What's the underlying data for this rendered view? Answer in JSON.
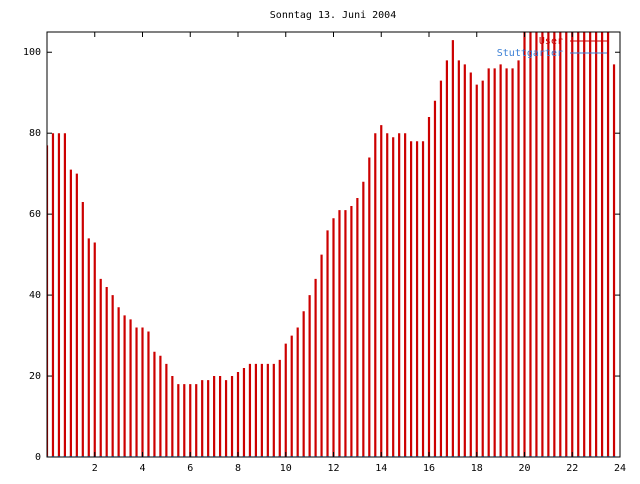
{
  "chart_data": {
    "type": "impulse",
    "title": "Sonntag 13. Juni 2004",
    "x": [
      0,
      0.25,
      0.5,
      0.75,
      1,
      1.25,
      1.5,
      1.75,
      2,
      2.25,
      2.5,
      2.75,
      3,
      3.25,
      3.5,
      3.75,
      4,
      4.25,
      4.5,
      4.75,
      5,
      5.25,
      5.5,
      5.75,
      6,
      6.25,
      6.5,
      6.75,
      7,
      7.25,
      7.5,
      7.75,
      8,
      8.25,
      8.5,
      8.75,
      9,
      9.25,
      9.5,
      9.75,
      10,
      10.25,
      10.5,
      10.75,
      11,
      11.25,
      11.5,
      11.75,
      12,
      12.25,
      12.5,
      12.75,
      13,
      13.25,
      13.5,
      13.75,
      14,
      14.25,
      14.5,
      14.75,
      15,
      15.25,
      15.5,
      15.75,
      16,
      16.25,
      16.5,
      16.75,
      17,
      17.25,
      17.5,
      17.75,
      18,
      18.25,
      18.5,
      18.75,
      19,
      19.25,
      19.5,
      19.75,
      20,
      20.25,
      20.5,
      20.75,
      21,
      21.25,
      21.5,
      21.75,
      22,
      22.25,
      22.5,
      22.75,
      23,
      23.25,
      23.5,
      23.75
    ],
    "series": [
      {
        "name": "User",
        "color": "#cc0000",
        "values": [
          77,
          80,
          80,
          80,
          71,
          70,
          63,
          54,
          53,
          44,
          42,
          40,
          37,
          35,
          34,
          32,
          32,
          31,
          26,
          25,
          23,
          20,
          18,
          18,
          18,
          18,
          19,
          19,
          20,
          20,
          19,
          20,
          21,
          22,
          23,
          23,
          23,
          23,
          23,
          24,
          28,
          30,
          32,
          36,
          40,
          44,
          50,
          56,
          59,
          61,
          61,
          62,
          64,
          68,
          74,
          80,
          82,
          80,
          79,
          80,
          80,
          78,
          78,
          78,
          84,
          88,
          93,
          98,
          103,
          98,
          97,
          95,
          92,
          93,
          96,
          96,
          97,
          96,
          96,
          98,
          106,
          106,
          106,
          106,
          106,
          106,
          106,
          106,
          106,
          106,
          106,
          106,
          106,
          106,
          106,
          97
        ]
      },
      {
        "name": "Stuttgarter",
        "color": "#3a7fd5",
        "values": [
          0,
          0,
          0,
          0,
          0,
          0,
          0,
          0,
          0,
          0,
          0,
          0,
          0,
          0,
          0,
          0,
          0,
          0,
          0,
          0,
          0,
          0,
          0,
          0,
          0,
          0,
          0,
          0,
          0,
          0,
          0,
          0,
          0,
          0,
          0,
          0,
          0,
          0,
          0,
          0,
          0,
          0,
          0,
          0,
          0,
          0,
          0,
          0,
          0,
          0,
          0,
          0,
          0,
          0,
          0,
          0,
          0,
          0,
          0,
          0,
          0,
          0,
          0,
          0,
          0,
          0,
          0,
          0,
          0,
          0,
          0,
          0,
          0,
          0,
          0,
          0,
          0,
          0,
          0,
          0,
          0,
          0,
          0,
          0,
          0,
          0,
          0,
          0,
          0,
          0,
          0,
          0,
          0,
          0,
          0,
          0
        ]
      }
    ],
    "xlim": [
      0,
      24
    ],
    "xticks": [
      2,
      4,
      6,
      8,
      10,
      12,
      14,
      16,
      18,
      20,
      22,
      24
    ],
    "ylim": [
      0,
      105
    ],
    "yticks": [
      0,
      20,
      40,
      60,
      80,
      100
    ]
  }
}
